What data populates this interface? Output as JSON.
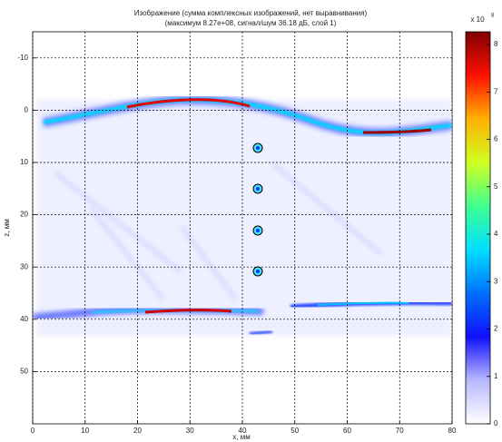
{
  "chart_data": {
    "type": "heatmap",
    "title": "Изображение (сумма комплексных изображений, нет выравнивания)",
    "subtitle": "(максимум 8.27e+08, сигнал/шум  36.18 дБ, слой 1)",
    "xlabel": "x, мм",
    "ylabel": "z, мм",
    "xlim": [
      0,
      80
    ],
    "ylim": [
      -15,
      60
    ],
    "y_reversed": true,
    "xticks": [
      0,
      10,
      20,
      30,
      40,
      50,
      60,
      70,
      80
    ],
    "yticks": [
      -10,
      0,
      10,
      20,
      30,
      40,
      50
    ],
    "grid": true,
    "colorbar": {
      "lim": [
        0,
        8.27
      ],
      "ticks": [
        0,
        1,
        2,
        3,
        4,
        5,
        6,
        7,
        8
      ],
      "scale_label": "x 10",
      "scale_exponent": "8",
      "colormap": [
        "#ffffff",
        "#b8b8ff",
        "#1010ff",
        "#0070ff",
        "#00e0ff",
        "#40ff90",
        "#d0ff20",
        "#ffb000",
        "#ff1000",
        "#800000"
      ]
    }
  }
}
